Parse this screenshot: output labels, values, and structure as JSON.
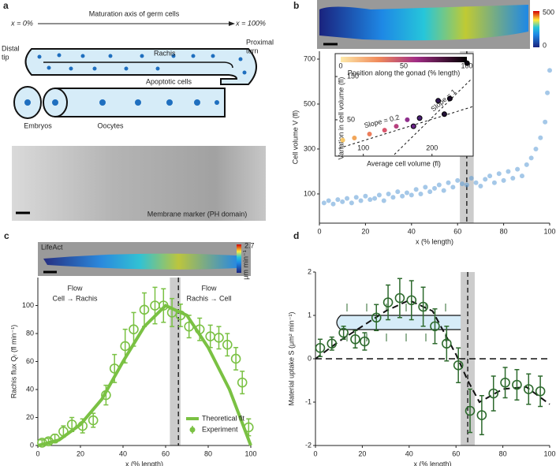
{
  "diagram": {
    "panel": "a",
    "start": "x = 0%",
    "axis": "Maturation axis of germ cells",
    "end": "x = 100%",
    "distal": [
      "Distal",
      "tip"
    ],
    "rachis": "Rachis",
    "proximal": [
      "Proximal",
      "turn"
    ],
    "apoptotic": "Apoptotic cells",
    "embryos": "Embryos",
    "oocytes": "Oocytes",
    "membrane": "Membrane marker (PH domain)"
  },
  "chart_data": [
    {
      "type": "scatter",
      "panel": "b",
      "xlabel": "x (% length)",
      "ylabel": "Cell volume V (fl)",
      "xlim": [
        0,
        100
      ],
      "xticks": [
        0,
        20,
        40,
        60,
        80,
        100
      ],
      "ylim": [
        -30,
        735
      ],
      "yticks": [
        100,
        300,
        500,
        700
      ],
      "color": "#5b9bd5",
      "vline": 64,
      "band": [
        61,
        67
      ],
      "colorbar": {
        "min": 0,
        "max": 500
      },
      "x": [
        2,
        4,
        6,
        8,
        10,
        12,
        14,
        16,
        18,
        20,
        22,
        24,
        26,
        28,
        30,
        32,
        34,
        36,
        38,
        40,
        42,
        44,
        46,
        48,
        50,
        52,
        54,
        56,
        58,
        60,
        62,
        64,
        66,
        68,
        70,
        72,
        74,
        76,
        78,
        80,
        82,
        84,
        86,
        88,
        90,
        92,
        94,
        96,
        98,
        99,
        100
      ],
      "y": [
        60,
        70,
        55,
        75,
        65,
        80,
        60,
        85,
        70,
        90,
        75,
        80,
        95,
        70,
        100,
        85,
        110,
        90,
        105,
        95,
        120,
        100,
        130,
        110,
        125,
        140,
        115,
        150,
        130,
        160,
        145,
        140,
        170,
        150,
        135,
        165,
        180,
        150,
        190,
        160,
        200,
        170,
        210,
        180,
        230,
        260,
        300,
        350,
        420,
        550,
        650
      ],
      "inset": {
        "xlabel": "Average cell volume (fl)",
        "ylabel": "Variation in cell volume (fl)",
        "xlim": [
          59,
          260
        ],
        "xticks": [
          100,
          200
        ],
        "ylim": [
          -34,
          203
        ],
        "yticks": [
          50,
          150
        ],
        "colorbar_label": "Position along the gonad (% length)",
        "colorbar_ticks": [
          0,
          50,
          100
        ],
        "slope1": "Slope = 1",
        "slope2": "Slope = 0.2",
        "x": [
          70,
          87,
          109,
          131,
          148,
          164,
          173,
          182,
          209,
          218,
          226,
          251
        ],
        "y": [
          3,
          8,
          17,
          26,
          35,
          50,
          35,
          54,
          94,
          63,
          99,
          181
        ],
        "colors": [
          "#f6c667",
          "#f2a65a",
          "#ec7d5b",
          "#d9566d",
          "#b8407e",
          "#8f2f8c",
          "#6b2589",
          "#4a1f74",
          "#2e164f",
          "#241238",
          "#180b25",
          "#0a0510"
        ]
      }
    },
    {
      "type": "line",
      "panel": "c",
      "xlabel": "x (% length)",
      "ylabel": "Rachis flux Qᵣ (fl min⁻¹)",
      "xlim": [
        0,
        100
      ],
      "xticks": [
        0,
        20,
        40,
        60,
        80,
        100
      ],
      "ylim": [
        0,
        120
      ],
      "yticks": [
        0,
        20,
        40,
        60,
        80,
        100
      ],
      "vline": 66,
      "band": [
        62,
        67
      ],
      "image_label": "LifeAct",
      "colorbar": {
        "max": 2.7,
        "unit": "μm min⁻¹"
      },
      "flow_left": [
        "Flow",
        "Cell → Rachis"
      ],
      "flow_right": [
        "Flow",
        "Rachis → Cell"
      ],
      "legend": "lower right",
      "series": [
        {
          "name": "Theoretical fit",
          "color": "#7ac143",
          "x": [
            0,
            10,
            20,
            30,
            40,
            50,
            60,
            70,
            80,
            90,
            100
          ],
          "values": [
            0,
            4,
            15,
            33,
            60,
            85,
            100,
            93,
            70,
            40,
            0
          ]
        },
        {
          "name": "Experiment",
          "color": "#7ac143",
          "x": [
            2,
            5,
            8,
            12,
            16,
            21,
            26,
            32,
            36,
            41,
            45,
            50,
            55,
            59,
            63,
            67,
            71,
            76,
            81,
            85,
            89,
            93,
            96,
            99
          ],
          "values": [
            2,
            3,
            5,
            10,
            15,
            14,
            18,
            36,
            55,
            71,
            83,
            97,
            100,
            100,
            95,
            93,
            85,
            83,
            78,
            77,
            72,
            62,
            45,
            13
          ],
          "errors": [
            2,
            2,
            3,
            4,
            5,
            5,
            5,
            7,
            10,
            12,
            12,
            12,
            13,
            12,
            10,
            8,
            8,
            8,
            8,
            8,
            8,
            8,
            8,
            6
          ]
        }
      ]
    },
    {
      "type": "line",
      "panel": "d",
      "xlabel": "x (% length)",
      "ylabel": "Material uptake S (μm² min⁻¹)",
      "xlim": [
        0,
        100
      ],
      "xticks": [
        0,
        20,
        40,
        60,
        80,
        100
      ],
      "ylim": [
        -2,
        2
      ],
      "yticks": [
        -2,
        -1,
        0,
        1,
        2
      ],
      "vline": 65,
      "band": [
        62,
        68
      ],
      "zero_line": true,
      "series": [
        {
          "color": "#111111",
          "dashed": true,
          "x": [
            0,
            10,
            20,
            30,
            40,
            50,
            60,
            65,
            70,
            80,
            90,
            100
          ],
          "values": [
            0,
            0.4,
            0.75,
            1.1,
            1.35,
            1.1,
            0.1,
            -0.5,
            -1.0,
            -0.7,
            -0.65,
            -1.05
          ]
        },
        {
          "color": "#2d6a2d",
          "x": [
            2,
            7,
            12,
            17,
            21,
            26,
            31,
            36,
            41,
            46,
            51,
            56,
            61,
            66,
            71,
            76,
            81,
            86,
            91,
            96
          ],
          "values": [
            0.25,
            0.35,
            0.6,
            0.45,
            0.4,
            0.95,
            1.3,
            1.4,
            1.35,
            1.2,
            0.75,
            0.35,
            -0.15,
            -1.2,
            -1.3,
            -0.8,
            -0.55,
            -0.6,
            -0.7,
            -0.75
          ],
          "errors": [
            0.2,
            0.15,
            0.15,
            0.2,
            0.2,
            0.3,
            0.4,
            0.45,
            0.45,
            0.45,
            0.4,
            0.4,
            0.4,
            0.5,
            0.45,
            0.4,
            0.35,
            0.35,
            0.35,
            0.35
          ]
        }
      ]
    }
  ]
}
